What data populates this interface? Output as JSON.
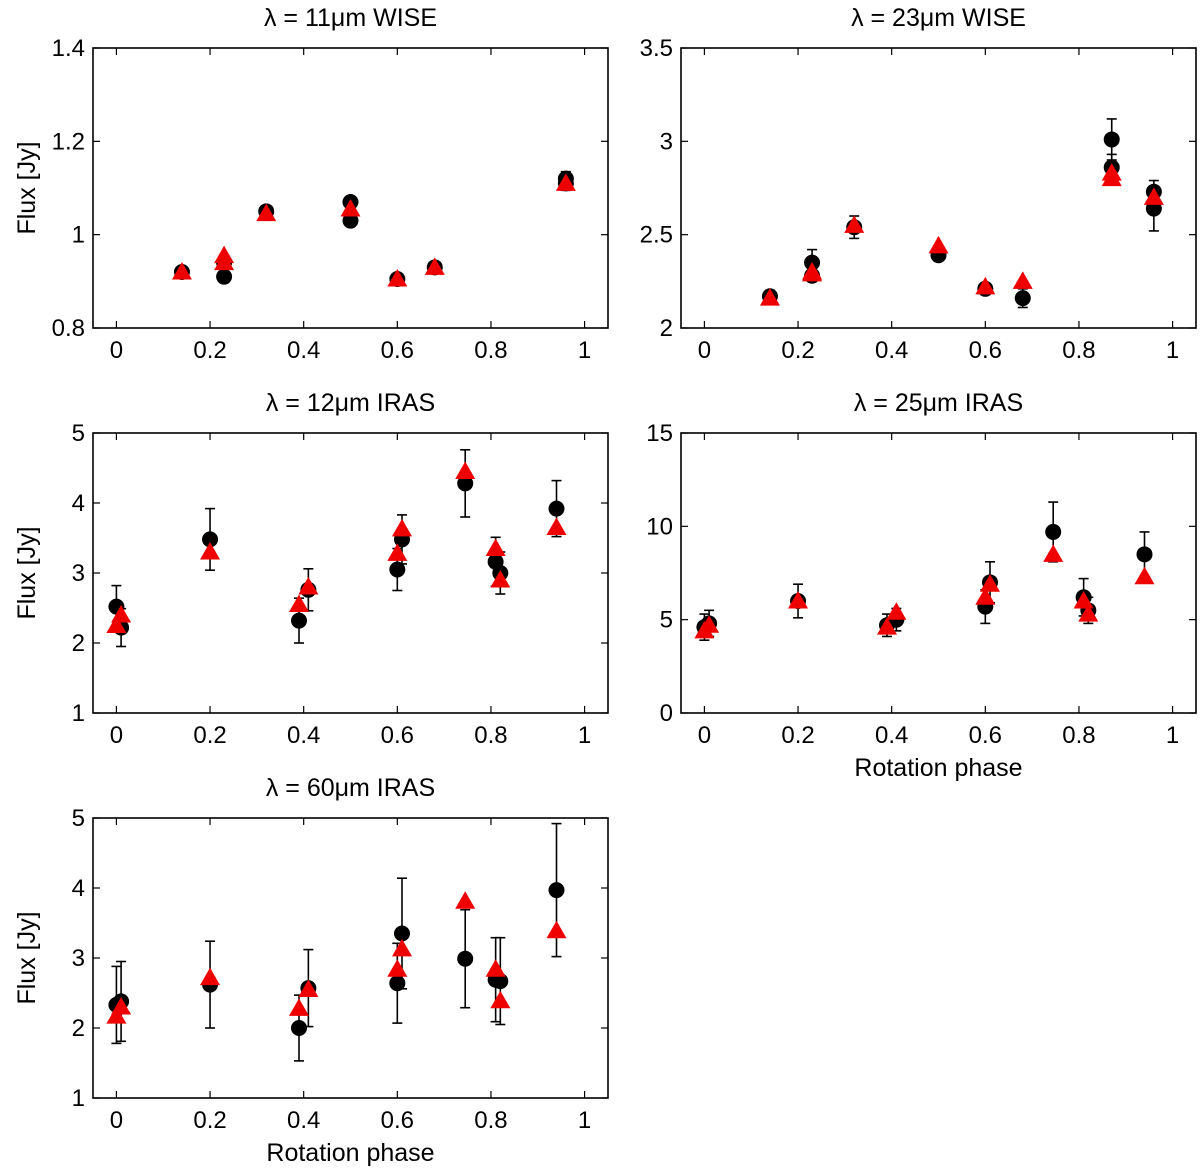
{
  "chart_data": [
    {
      "id": "p1",
      "type": "scatter",
      "title": "λ = 11μm  WISE",
      "xlabel": "",
      "ylabel": "Flux [Jy]",
      "xlim": [
        -0.05,
        1.05
      ],
      "ylim": [
        0.8,
        1.4
      ],
      "xticks": [
        0,
        0.2,
        0.4,
        0.6,
        0.8,
        1
      ],
      "xticklabels": [
        "0",
        "0.2",
        "0.4",
        "0.6",
        "0.8",
        "1"
      ],
      "yticks": [
        0.8,
        1,
        1.2,
        1.4
      ],
      "yticklabels": [
        "0.8",
        "1",
        "1.2",
        "1.4"
      ],
      "grid": false,
      "series": [
        {
          "marker": "circle",
          "color": "#000000",
          "x": [
            0.14,
            0.23,
            0.23,
            0.32,
            0.5,
            0.5,
            0.6,
            0.68,
            0.96,
            0.96
          ],
          "y": [
            0.92,
            0.91,
            0.94,
            1.05,
            1.07,
            1.03,
            0.905,
            0.93,
            1.12,
            1.11
          ],
          "err": [
            0.01,
            0.01,
            0.01,
            0.01,
            0.01,
            0.01,
            0.01,
            0.01,
            0.015,
            0.015
          ]
        },
        {
          "marker": "triangle",
          "color": "#ee0000",
          "x": [
            0.14,
            0.23,
            0.23,
            0.32,
            0.5,
            0.6,
            0.68,
            0.96
          ],
          "y": [
            0.92,
            0.94,
            0.955,
            1.045,
            1.055,
            0.905,
            0.93,
            1.11
          ]
        }
      ]
    },
    {
      "id": "p2",
      "type": "scatter",
      "title": "λ = 23μm  WISE",
      "xlabel": "",
      "ylabel": "",
      "xlim": [
        -0.05,
        1.05
      ],
      "ylim": [
        2.0,
        3.5
      ],
      "xticks": [
        0,
        0.2,
        0.4,
        0.6,
        0.8,
        1
      ],
      "xticklabels": [
        "0",
        "0.2",
        "0.4",
        "0.6",
        "0.8",
        "1"
      ],
      "yticks": [
        2,
        2.5,
        3,
        3.5
      ],
      "yticklabels": [
        "2",
        "2.5",
        "3",
        "3.5"
      ],
      "grid": false,
      "series": [
        {
          "marker": "circle",
          "color": "#000000",
          "x": [
            0.14,
            0.23,
            0.23,
            0.32,
            0.5,
            0.6,
            0.68,
            0.87,
            0.87,
            0.96,
            0.96
          ],
          "y": [
            2.17,
            2.35,
            2.28,
            2.54,
            2.39,
            2.21,
            2.16,
            3.01,
            2.86,
            2.73,
            2.64
          ],
          "err": [
            0.03,
            0.07,
            0.03,
            0.06,
            0.03,
            0.03,
            0.05,
            0.11,
            0.07,
            0.06,
            0.12
          ]
        },
        {
          "marker": "triangle",
          "color": "#ee0000",
          "x": [
            0.14,
            0.23,
            0.23,
            0.32,
            0.5,
            0.6,
            0.68,
            0.87,
            0.87,
            0.96
          ],
          "y": [
            2.16,
            2.29,
            2.3,
            2.55,
            2.44,
            2.22,
            2.25,
            2.8,
            2.83,
            2.7
          ]
        }
      ]
    },
    {
      "id": "p3",
      "type": "scatter",
      "title": "λ = 12μm  IRAS",
      "xlabel": "",
      "ylabel": "Flux [Jy]",
      "xlim": [
        -0.05,
        1.05
      ],
      "ylim": [
        1,
        5
      ],
      "xticks": [
        0,
        0.2,
        0.4,
        0.6,
        0.8,
        1
      ],
      "xticklabels": [
        "0",
        "0.2",
        "0.4",
        "0.6",
        "0.8",
        "1"
      ],
      "yticks": [
        1,
        2,
        3,
        4,
        5
      ],
      "yticklabels": [
        "1",
        "2",
        "3",
        "4",
        "5"
      ],
      "grid": false,
      "series": [
        {
          "marker": "circle",
          "color": "#000000",
          "x": [
            0.0,
            0.01,
            0.2,
            0.39,
            0.41,
            0.6,
            0.61,
            0.745,
            0.81,
            0.82,
            0.94
          ],
          "y": [
            2.52,
            2.22,
            3.48,
            2.32,
            2.76,
            3.05,
            3.48,
            4.28,
            3.16,
            3.0,
            3.92
          ],
          "err": [
            0.3,
            0.27,
            0.44,
            0.32,
            0.3,
            0.3,
            0.35,
            0.48,
            0.35,
            0.3,
            0.4
          ]
        },
        {
          "marker": "triangle",
          "color": "#ee0000",
          "x": [
            0.0,
            0.01,
            0.2,
            0.39,
            0.41,
            0.6,
            0.61,
            0.745,
            0.81,
            0.82,
            0.94
          ],
          "y": [
            2.25,
            2.4,
            3.3,
            2.55,
            2.8,
            3.28,
            3.63,
            4.45,
            3.35,
            2.9,
            3.65
          ]
        }
      ]
    },
    {
      "id": "p4",
      "type": "scatter",
      "title": "λ = 25μm  IRAS",
      "xlabel": "Rotation phase",
      "ylabel": "",
      "xlim": [
        -0.05,
        1.05
      ],
      "ylim": [
        0,
        15
      ],
      "xticks": [
        0,
        0.2,
        0.4,
        0.6,
        0.8,
        1
      ],
      "xticklabels": [
        "0",
        "0.2",
        "0.4",
        "0.6",
        "0.8",
        "1"
      ],
      "yticks": [
        0,
        5,
        10,
        15
      ],
      "yticklabels": [
        "0",
        "5",
        "10",
        "15"
      ],
      "grid": false,
      "series": [
        {
          "marker": "circle",
          "color": "#000000",
          "x": [
            0.0,
            0.01,
            0.2,
            0.39,
            0.41,
            0.6,
            0.61,
            0.745,
            0.81,
            0.82,
            0.94
          ],
          "y": [
            4.6,
            4.8,
            6.0,
            4.7,
            5.0,
            5.7,
            7.0,
            9.7,
            6.2,
            5.5,
            8.5
          ],
          "err": [
            0.7,
            0.7,
            0.9,
            0.6,
            0.6,
            0.9,
            1.1,
            1.6,
            1.0,
            0.7,
            1.2
          ]
        },
        {
          "marker": "triangle",
          "color": "#ee0000",
          "x": [
            0.0,
            0.01,
            0.2,
            0.39,
            0.41,
            0.6,
            0.61,
            0.745,
            0.81,
            0.82,
            0.94
          ],
          "y": [
            4.4,
            4.7,
            6.0,
            4.6,
            5.4,
            6.2,
            6.9,
            8.5,
            6.0,
            5.3,
            7.3
          ]
        }
      ]
    },
    {
      "id": "p5",
      "type": "scatter",
      "title": "λ = 60μm  IRAS",
      "xlabel": "Rotation phase",
      "ylabel": "Flux [Jy]",
      "xlim": [
        -0.05,
        1.05
      ],
      "ylim": [
        1,
        5
      ],
      "xticks": [
        0,
        0.2,
        0.4,
        0.6,
        0.8,
        1
      ],
      "xticklabels": [
        "0",
        "0.2",
        "0.4",
        "0.6",
        "0.8",
        "1"
      ],
      "yticks": [
        1,
        2,
        3,
        4,
        5
      ],
      "yticklabels": [
        "1",
        "2",
        "3",
        "4",
        "5"
      ],
      "grid": false,
      "series": [
        {
          "marker": "circle",
          "color": "#000000",
          "x": [
            0.0,
            0.01,
            0.2,
            0.39,
            0.41,
            0.6,
            0.61,
            0.745,
            0.81,
            0.82,
            0.94
          ],
          "y": [
            2.33,
            2.38,
            2.62,
            2.0,
            2.57,
            2.64,
            3.35,
            2.99,
            2.69,
            2.67,
            3.97
          ],
          "err": [
            0.55,
            0.57,
            0.62,
            0.47,
            0.55,
            0.57,
            0.79,
            0.7,
            0.6,
            0.62,
            0.95
          ]
        },
        {
          "marker": "triangle",
          "color": "#ee0000",
          "x": [
            0.0,
            0.01,
            0.2,
            0.39,
            0.41,
            0.6,
            0.61,
            0.745,
            0.81,
            0.82,
            0.94
          ],
          "y": [
            2.17,
            2.3,
            2.72,
            2.28,
            2.55,
            2.84,
            3.13,
            3.81,
            2.84,
            2.39,
            3.39
          ]
        }
      ]
    }
  ]
}
